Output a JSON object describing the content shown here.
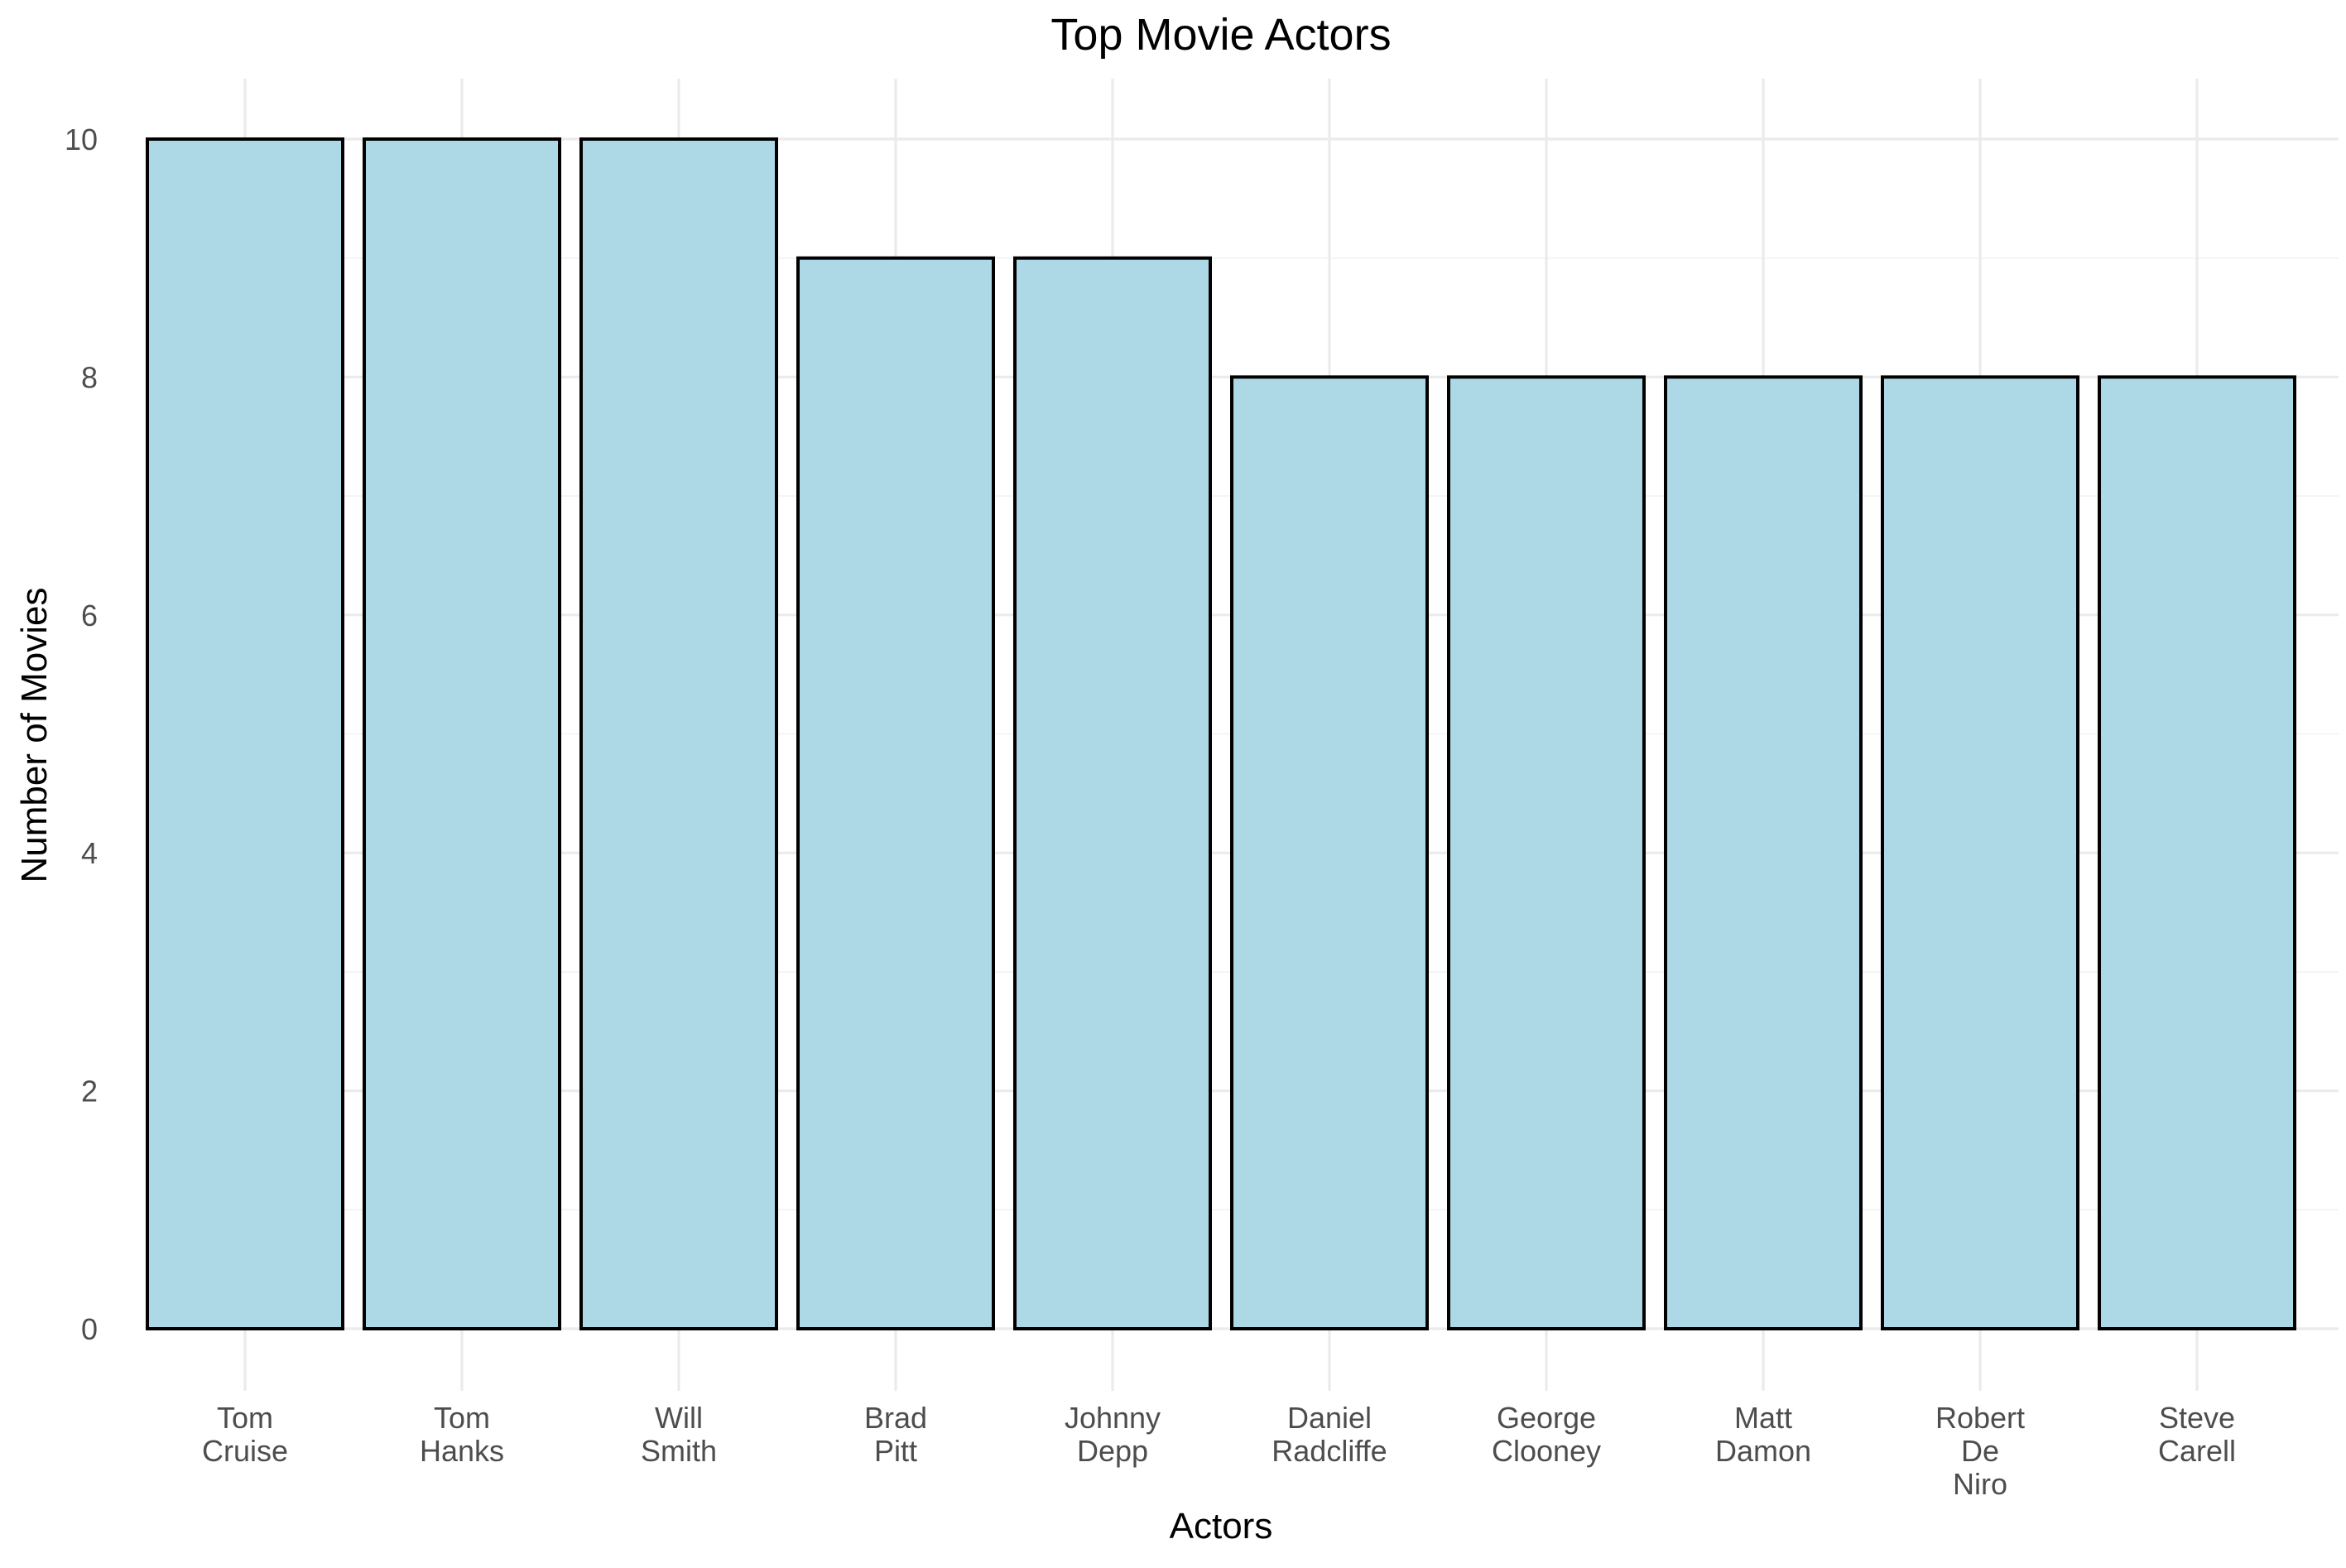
{
  "chart_data": {
    "type": "bar",
    "title": "Top Movie Actors",
    "xlabel": "Actors",
    "ylabel": "Number of Movies",
    "categories": [
      [
        "Tom",
        "Cruise"
      ],
      [
        "Tom",
        "Hanks"
      ],
      [
        "Will",
        "Smith"
      ],
      [
        "Brad",
        "Pitt"
      ],
      [
        "Johnny",
        "Depp"
      ],
      [
        "Daniel",
        "Radcliffe"
      ],
      [
        "George",
        "Clooney"
      ],
      [
        "Matt",
        "Damon"
      ],
      [
        "Robert",
        "De",
        "Niro"
      ],
      [
        "Steve",
        "Carell"
      ]
    ],
    "values": [
      10,
      10,
      10,
      9,
      9,
      8,
      8,
      8,
      8,
      8
    ],
    "ylim": [
      0,
      10
    ],
    "yticks": [
      0,
      2,
      4,
      6,
      8,
      10
    ],
    "grid": true,
    "legend": "none",
    "colors": {
      "bar_fill": "#add8e6",
      "bar_outline": "#000000",
      "grid": "#ebebeb"
    }
  }
}
